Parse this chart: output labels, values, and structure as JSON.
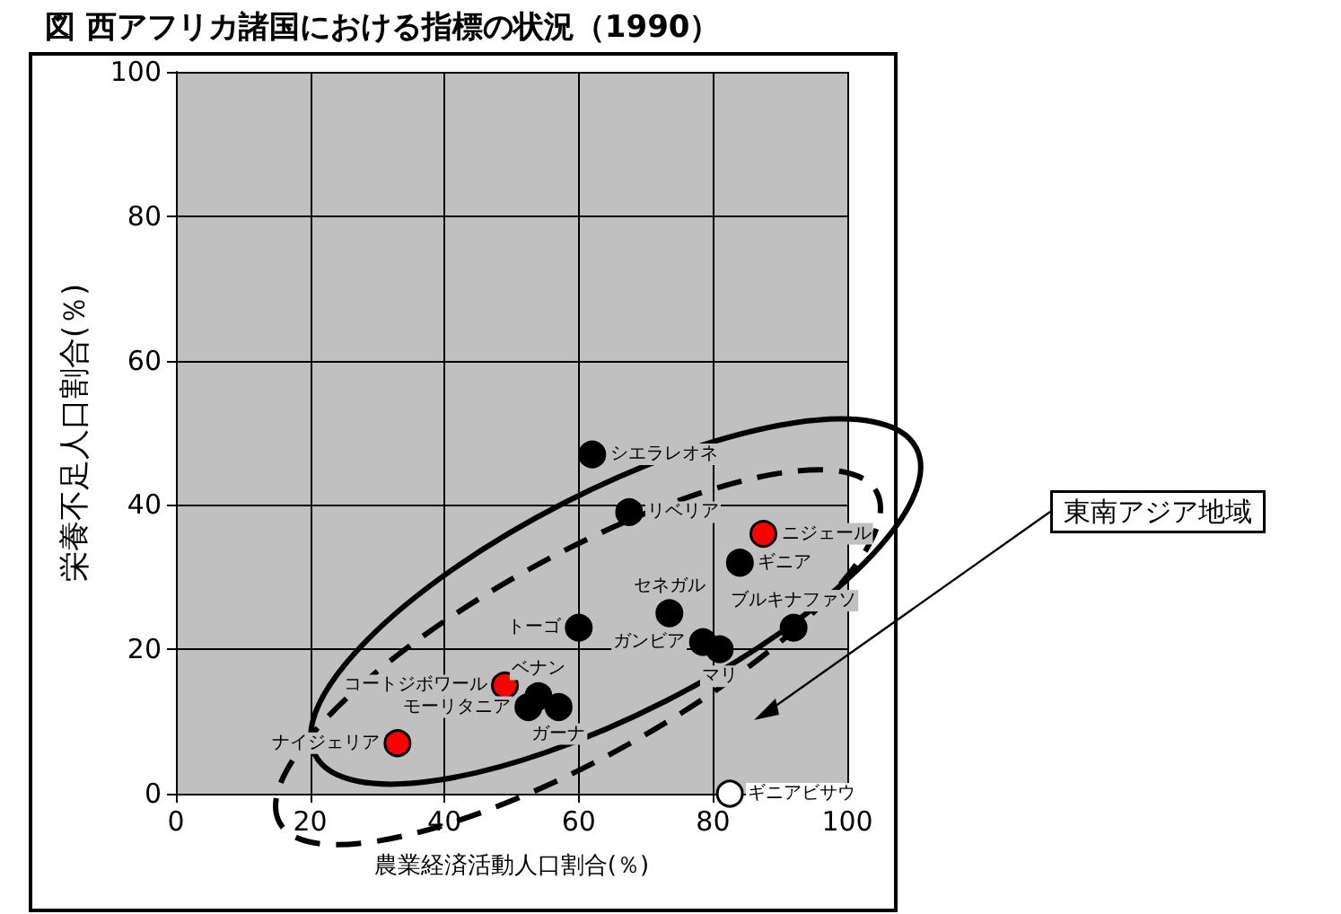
{
  "chart_data": {
    "type": "scatter",
    "title": "図 西アフリカ諸国における指標の状況（1990）",
    "xlabel": "農業経済活動人口割合(％)",
    "ylabel": "栄養不足人口割合(％)",
    "series": [
      {
        "color": "#000000",
        "x": [
          62,
          67.5,
          84,
          73.5,
          92,
          60,
          78.5,
          81,
          54,
          52.5,
          57
        ],
        "values": [
          47,
          39,
          32,
          25,
          23,
          23,
          21,
          20,
          13.5,
          12,
          12
        ]
      },
      {
        "color": "#ff0000",
        "x": [
          87.5,
          49,
          33
        ],
        "values": [
          36,
          15,
          7
        ]
      },
      {
        "color": "#ffffff",
        "x": [
          82.5
        ],
        "values": [
          0
        ]
      }
    ],
    "annotations": [
      {
        "text": "シエラレオネ",
        "x": 62,
        "y": 47
      },
      {
        "text": "リベリア",
        "x": 67.5,
        "y": 39
      },
      {
        "text": "ニジェール",
        "x": 87.5,
        "y": 36
      },
      {
        "text": "ギニア",
        "x": 84,
        "y": 32
      },
      {
        "text": "セネガル",
        "x": 73.5,
        "y": 25
      },
      {
        "text": "ブルキナファソ",
        "x": 92,
        "y": 23
      },
      {
        "text": "トーゴ",
        "x": 60,
        "y": 23
      },
      {
        "text": "ガンビア",
        "x": 78.5,
        "y": 21
      },
      {
        "text": "マリ",
        "x": 81,
        "y": 20
      },
      {
        "text": "ギニアビサウ",
        "x": 82.5,
        "y": 0
      },
      {
        "text": "コートジボワール",
        "x": 49,
        "y": 15
      },
      {
        "text": "ベナン",
        "x": 54,
        "y": 13.5
      },
      {
        "text": "モーリタニア",
        "x": 52.5,
        "y": 12
      },
      {
        "text": "ガーナ",
        "x": 57,
        "y": 12
      },
      {
        "text": "ナイジェリア",
        "x": 33,
        "y": 7
      },
      "東南アジア地域"
    ],
    "xlim": [
      0,
      100
    ],
    "xticks": [
      0,
      20,
      40,
      60,
      80,
      100
    ],
    "ylim": [
      0,
      100
    ],
    "yticks": [
      0,
      20,
      40,
      60,
      80,
      100
    ],
    "grid": true,
    "marker": "circle"
  }
}
